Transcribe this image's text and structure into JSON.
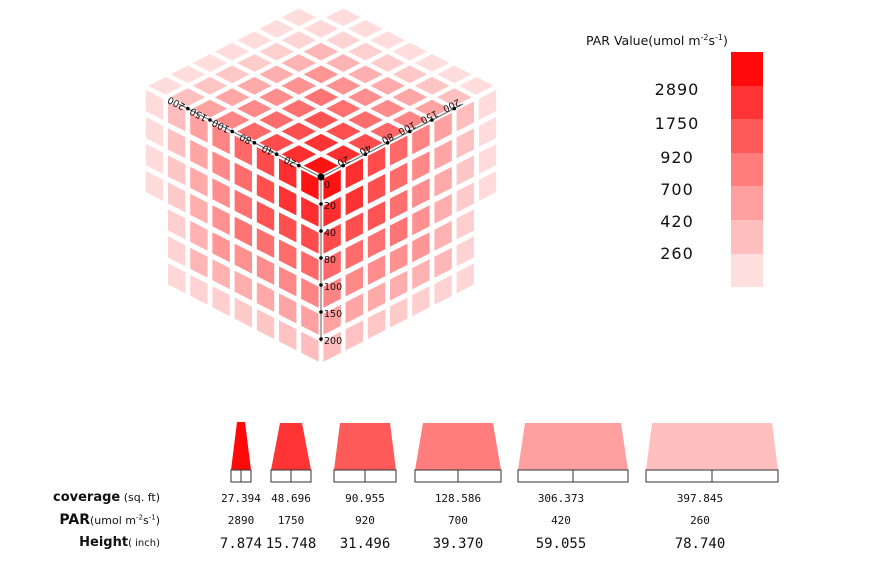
{
  "legend": {
    "title": "PAR Value(umol m",
    "title_sup1": "-2",
    "title_mid": "s",
    "title_sup2": "-1",
    "title_end": ")",
    "values": [
      "2890",
      "1750",
      "920",
      "700",
      "420",
      "260"
    ],
    "colors": [
      "#ff0a0a",
      "#ff3535",
      "#ff5a5a",
      "#ff7d7d",
      "#ff9f9f",
      "#ffbfbf",
      "#ffdede"
    ]
  },
  "cube": {
    "left_axis_ticks": [
      "200",
      "150",
      "100",
      "80",
      "40",
      "20"
    ],
    "right_axis_ticks": [
      "20",
      "40",
      "80",
      "100",
      "150",
      "200"
    ],
    "vertical_axis_ticks": [
      "0",
      "20",
      "40",
      "80",
      "100",
      "150",
      "200"
    ],
    "accent_color": "#ff0000"
  },
  "table": {
    "coverage_label": "coverage",
    "coverage_unit": " (sq. ft)",
    "par_label": "PAR",
    "par_unit_a": "(umol m",
    "par_unit_sup1": "-2",
    "par_unit_b": "s",
    "par_unit_sup2": "-1",
    "par_unit_c": ")",
    "height_label": "Height",
    "height_unit": "( inch)",
    "coverage": [
      "27.394",
      "48.696",
      "90.955",
      "128.586",
      "306.373",
      "397.845"
    ],
    "par": [
      "2890",
      "1750",
      "920",
      "700",
      "420",
      "260"
    ],
    "height": [
      "7.874",
      "15.748",
      "31.496",
      "39.370",
      "59.055",
      "78.740"
    ]
  }
}
